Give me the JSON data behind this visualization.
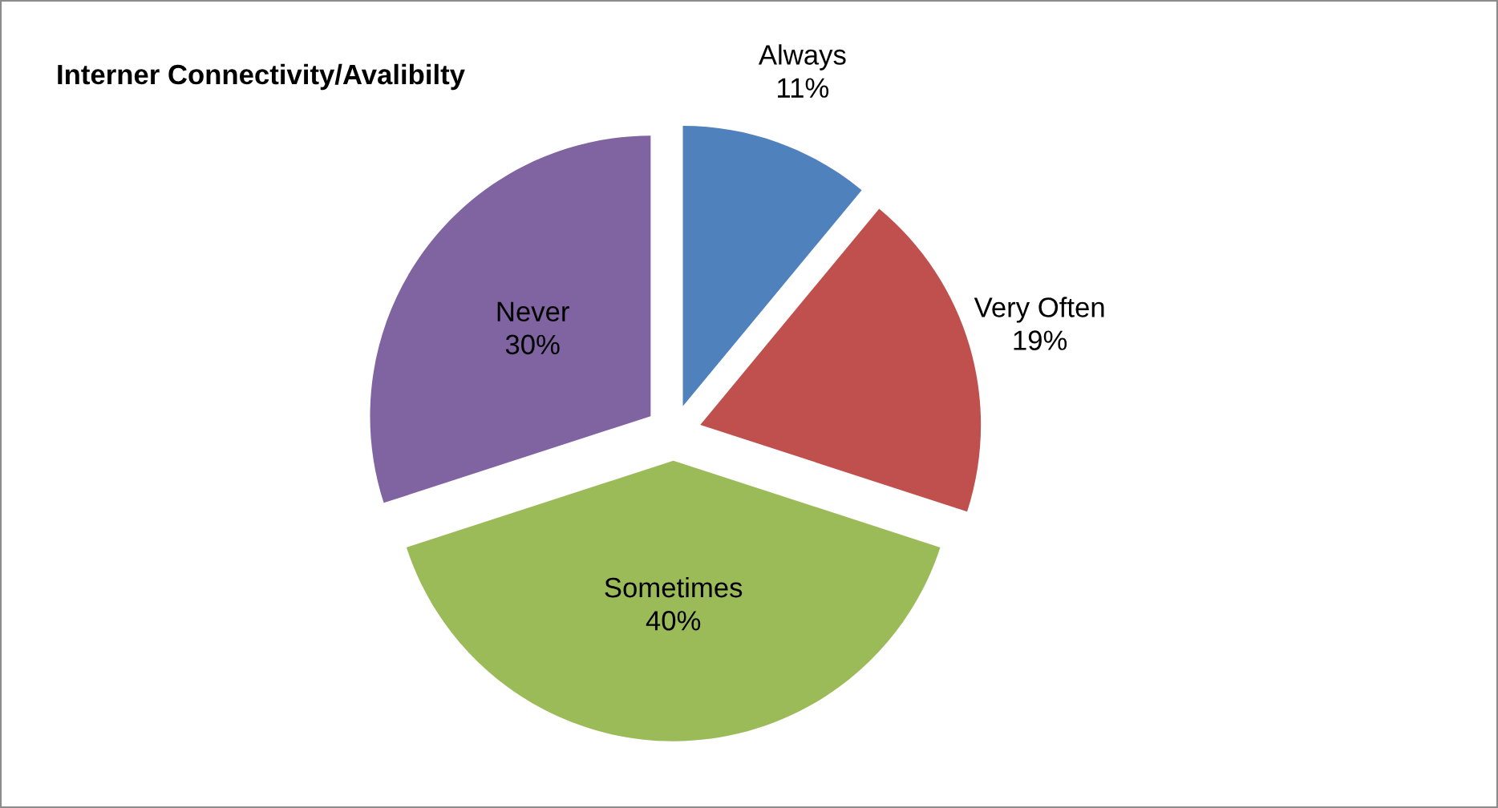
{
  "chart_data": {
    "type": "pie",
    "title": "Interner Connectivity/Avalibilty",
    "categories": [
      "Always",
      "Very Often",
      "Sometimes",
      "Never"
    ],
    "values": [
      11,
      19,
      40,
      30
    ],
    "value_labels": [
      "11%",
      "19%",
      "40%",
      "30%"
    ],
    "colors": [
      "#4f81bd",
      "#c0504d",
      "#9bbb59",
      "#8064a2"
    ],
    "legend": false
  }
}
